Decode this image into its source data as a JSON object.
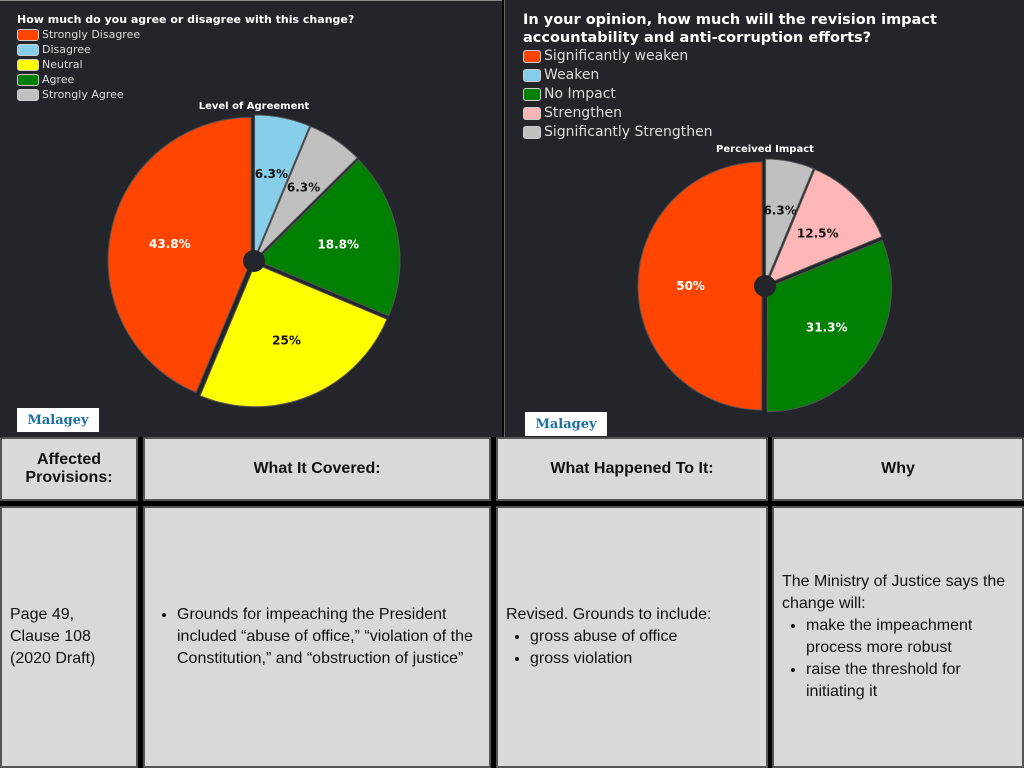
{
  "chart_data": [
    {
      "type": "pie",
      "question": "How much do you agree or disagree with this change?",
      "title": "Level of Agreement",
      "legend": [
        "Strongly Disagree",
        "Disagree",
        "Neutral",
        "Agree",
        "Strongly Agree"
      ],
      "slices": [
        {
          "name": "Disagree",
          "value": 6.3,
          "label": "6.3%",
          "color": "#87ceeb"
        },
        {
          "name": "Strongly Agree",
          "value": 6.3,
          "label": "6.3%",
          "color": "#c0c0c0"
        },
        {
          "name": "Agree",
          "value": 18.8,
          "label": "18.8%",
          "color": "#008000"
        },
        {
          "name": "Neutral",
          "value": 25,
          "label": "25%",
          "color": "#ffff00"
        },
        {
          "name": "Strongly Disagree",
          "value": 43.8,
          "label": "43.8%",
          "color": "#ff4500"
        }
      ],
      "legend_colors": [
        "#ff4500",
        "#87ceeb",
        "#ffff00",
        "#008000",
        "#c0c0c0"
      ],
      "legend_placement": "top-left"
    },
    {
      "type": "pie",
      "question": "In your opinion, how much will the revision impact accountability and anti-corruption efforts?",
      "title": "Perceived Impact",
      "legend": [
        "Significantly weaken",
        "Weaken",
        "No Impact",
        "Strengthen",
        "Significantly Strengthen"
      ],
      "slices": [
        {
          "name": "Significantly Strengthen",
          "value": 6.3,
          "label": "6.3%",
          "color": "#c0c0c0"
        },
        {
          "name": "Strengthen",
          "value": 12.5,
          "label": "12.5%",
          "color": "#ffb6b6"
        },
        {
          "name": "No Impact",
          "value": 31.3,
          "label": "31.3%",
          "color": "#008000"
        },
        {
          "name": "Significantly weaken",
          "value": 50,
          "label": "50%",
          "color": "#ff4500"
        }
      ],
      "legend_colors": [
        "#ff4500",
        "#87ceeb",
        "#008000",
        "#ffb6b6",
        "#c0c0c0"
      ],
      "legend_placement": "top-left"
    }
  ],
  "logo": "Malagey",
  "table": {
    "headers": [
      "Affected Provisions:",
      "What It Covered:",
      "What Happened To It:",
      "Why"
    ],
    "provision": "Page 49, Clause 108 (2020 Draft)",
    "covered": [
      "Grounds for impeaching the President included “abuse of office,” “violation of the Constitution,” and “obstruction of justice”"
    ],
    "happened_intro": "Revised. Grounds to include:",
    "happened": [
      "gross abuse of office",
      "gross violation"
    ],
    "why_intro": "The Ministry of Justice says the change will:",
    "why": [
      " make the impeachment process more robust",
      "raise the threshold for initiating it"
    ]
  }
}
